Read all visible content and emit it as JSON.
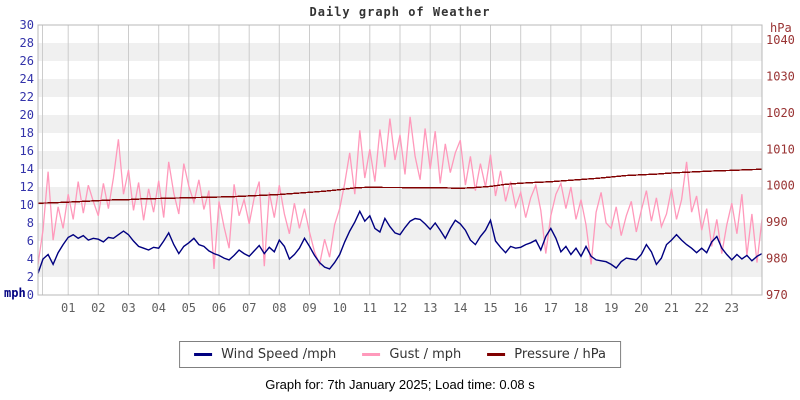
{
  "title": "Daily graph of Weather",
  "footer": {
    "caption": "Graph for: 7th January 2025; Load time: 0.08 s"
  },
  "legend": [
    {
      "label": "Wind Speed /mph",
      "color": "#000080"
    },
    {
      "label": "Gust / mph",
      "color": "#ff99bb"
    },
    {
      "label": "Pressure / hPa",
      "color": "#800000"
    }
  ],
  "chart_data": {
    "type": "line",
    "title": "Daily graph of Weather",
    "x_unit": "hour of day",
    "x_ticks": [
      "01",
      "02",
      "03",
      "04",
      "05",
      "06",
      "07",
      "08",
      "09",
      "10",
      "11",
      "12",
      "13",
      "14",
      "15",
      "16",
      "17",
      "18",
      "19",
      "20",
      "21",
      "22",
      "23"
    ],
    "left_axis": {
      "label": "mph",
      "min": 0,
      "max": 30,
      "ticks": [
        0,
        2,
        4,
        6,
        8,
        10,
        12,
        14,
        16,
        18,
        20,
        22,
        24,
        26,
        28,
        30
      ],
      "color": "#3333aa"
    },
    "right_axis": {
      "label": "hPa",
      "min": 970,
      "max": 1044,
      "ticks": [
        970,
        980,
        990,
        1000,
        1010,
        1020,
        1030,
        1040
      ],
      "color": "#993333"
    },
    "grid": {
      "bands": true,
      "band_color": "#f0f0f0",
      "vline_color": "#cccccc",
      "border_color": "#b8b8b8"
    },
    "series": [
      {
        "id": "wind-speed",
        "name": "Wind Speed /mph",
        "axis": "left",
        "color": "#000080",
        "interval_minutes": 10,
        "values": [
          2.4,
          4.0,
          4.5,
          3.4,
          4.7,
          5.6,
          6.4,
          6.7,
          6.3,
          6.6,
          6.1,
          6.3,
          6.2,
          5.9,
          6.4,
          6.3,
          6.7,
          7.1,
          6.7,
          6.0,
          5.4,
          5.2,
          5.0,
          5.3,
          5.2,
          6.0,
          6.9,
          5.6,
          4.6,
          5.4,
          5.8,
          6.3,
          5.6,
          5.4,
          4.9,
          4.6,
          4.4,
          4.1,
          3.9,
          4.4,
          5.0,
          4.6,
          4.3,
          4.9,
          5.5,
          4.6,
          5.3,
          4.8,
          6.1,
          5.4,
          4.0,
          4.5,
          5.2,
          6.3,
          5.4,
          4.4,
          3.6,
          3.1,
          2.9,
          3.6,
          4.5,
          5.9,
          7.1,
          8.1,
          9.3,
          8.2,
          8.8,
          7.4,
          7.0,
          8.5,
          7.6,
          6.9,
          6.7,
          7.5,
          8.2,
          8.5,
          8.4,
          7.9,
          7.3,
          8.0,
          7.2,
          6.3,
          7.4,
          8.3,
          7.9,
          7.2,
          6.1,
          5.6,
          6.5,
          7.2,
          8.3,
          6.0,
          5.3,
          4.7,
          5.4,
          5.2,
          5.3,
          5.6,
          5.8,
          6.1,
          5.0,
          6.5,
          7.4,
          6.3,
          4.8,
          5.4,
          4.5,
          5.2,
          4.3,
          5.4,
          4.3,
          3.9,
          3.8,
          3.7,
          3.4,
          3.0,
          3.7,
          4.1,
          4.0,
          3.9,
          4.5,
          5.6,
          4.8,
          3.4,
          4.1,
          5.6,
          6.1,
          6.7,
          6.1,
          5.6,
          5.2,
          4.7,
          5.2,
          4.7,
          5.9,
          6.5,
          5.2,
          4.5,
          3.9,
          4.5,
          4.0,
          4.4,
          3.8,
          4.3,
          4.6
        ]
      },
      {
        "id": "gust",
        "name": "Gust / mph",
        "axis": "left",
        "color": "#ff99bb",
        "interval_minutes": 10,
        "values": [
          3.4,
          7.2,
          13.7,
          6.1,
          9.8,
          7.4,
          11.2,
          8.4,
          12.6,
          9.1,
          12.2,
          10.4,
          8.8,
          12.4,
          9.6,
          13.0,
          17.3,
          11.2,
          13.9,
          9.4,
          12.5,
          8.3,
          11.8,
          9.2,
          12.7,
          8.6,
          14.8,
          11.3,
          9.0,
          14.6,
          12.1,
          10.3,
          12.8,
          9.5,
          11.6,
          2.9,
          10.4,
          7.6,
          5.2,
          12.3,
          8.8,
          10.6,
          7.9,
          10.8,
          12.6,
          3.2,
          11.4,
          8.6,
          12.2,
          9.0,
          6.8,
          10.2,
          7.4,
          9.6,
          7.0,
          4.8,
          3.4,
          6.2,
          4.2,
          7.8,
          9.6,
          12.4,
          15.8,
          11.2,
          18.3,
          13.0,
          16.2,
          12.6,
          18.4,
          14.2,
          19.6,
          15.0,
          17.8,
          13.4,
          19.8,
          15.4,
          12.8,
          18.5,
          14.0,
          18.2,
          12.4,
          16.8,
          13.6,
          15.8,
          17.2,
          12.2,
          15.4,
          11.6,
          14.6,
          12.0,
          15.6,
          11.0,
          13.8,
          10.4,
          12.6,
          9.8,
          11.4,
          8.6,
          10.8,
          12.2,
          9.4,
          4.6,
          8.8,
          11.2,
          12.4,
          9.6,
          12.0,
          8.4,
          10.6,
          7.8,
          3.4,
          9.2,
          11.4,
          8.0,
          7.4,
          9.8,
          6.6,
          8.8,
          10.4,
          7.0,
          9.4,
          11.6,
          8.2,
          10.8,
          7.6,
          9.0,
          11.8,
          8.4,
          10.6,
          14.8,
          9.2,
          11.0,
          7.2,
          9.6,
          5.4,
          8.4,
          4.6,
          7.8,
          10.2,
          6.8,
          11.2,
          4.4,
          9.0,
          3.6,
          8.4
        ]
      },
      {
        "id": "pressure",
        "name": "Pressure / hPa",
        "axis": "right",
        "color": "#800000",
        "interval_minutes": 30,
        "values": [
          995.2,
          995.3,
          995.5,
          995.7,
          995.9,
          996.1,
          996.2,
          996.4,
          996.5,
          996.6,
          996.7,
          996.8,
          996.9,
          997.0,
          997.2,
          997.4,
          997.6,
          997.9,
          998.2,
          998.5,
          998.9,
          999.4,
          999.6,
          999.5,
          999.5,
          999.4,
          999.4,
          999.4,
          999.3,
          999.5,
          999.8,
          1000.4,
          1000.7,
          1000.9,
          1001.1,
          1001.4,
          1001.7,
          1002.0,
          1002.4,
          1002.8,
          1003.0,
          1003.2,
          1003.5,
          1003.7,
          1003.9,
          1004.1,
          1004.2,
          1004.4,
          1004.5
        ]
      }
    ]
  }
}
